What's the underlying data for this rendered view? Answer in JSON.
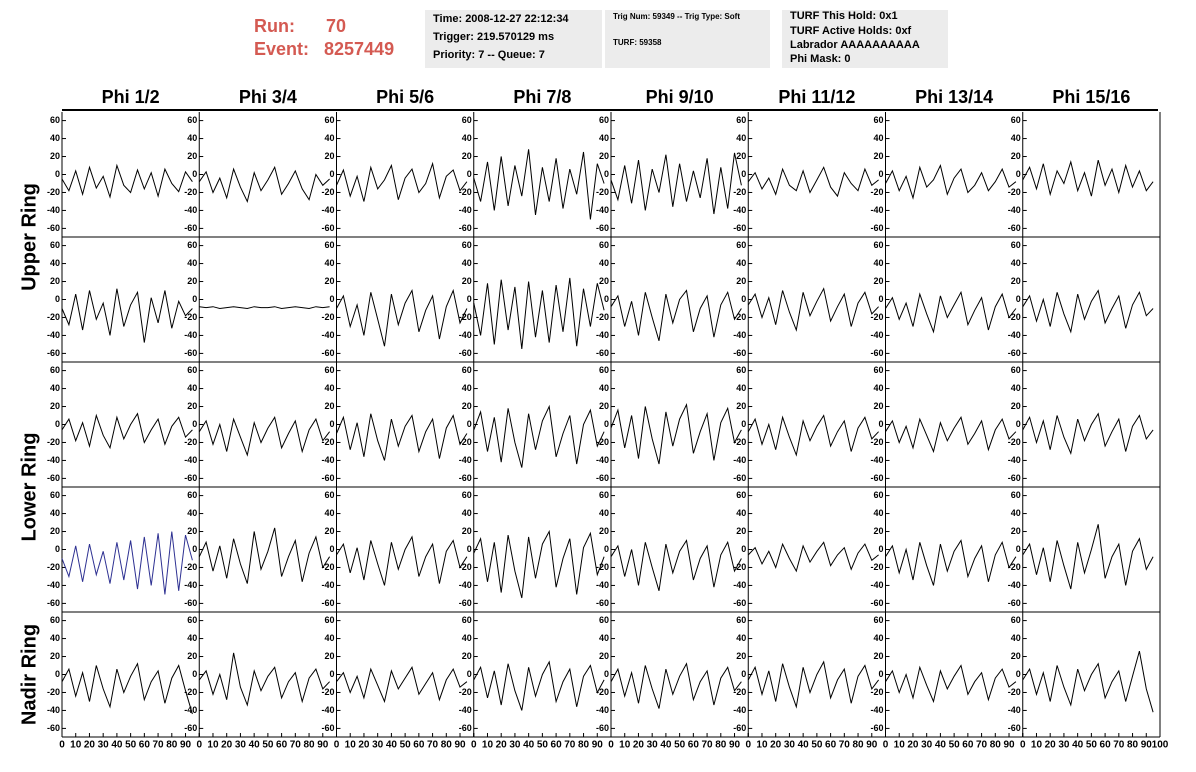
{
  "header": {
    "run_label": "Run:",
    "run": "70",
    "event_label": "Event:",
    "event": "8257449",
    "box1": [
      "Time: 2008-12-27 22:12:34",
      "Trigger: 219.570129 ms",
      "Priority: 7 -- Queue: 7"
    ],
    "box2": [
      "Trig Num: 59349 -- Trig Type: Soft",
      "TURF: 59358"
    ],
    "box3": [
      "TURF This Hold: 0x1",
      "TURF Active Holds: 0xf",
      "Labrador AAAAAAAAAA",
      "Phi Mask: 0"
    ]
  },
  "chart_data": {
    "type": "line",
    "columns": [
      "Phi 1/2",
      "Phi 3/4",
      "Phi 5/6",
      "Phi 7/8",
      "Phi 9/10",
      "Phi 11/12",
      "Phi 13/14",
      "Phi 15/16"
    ],
    "ring_labels": [
      "Upper Ring",
      "Lower Ring",
      "Nadir Ring"
    ],
    "x": [
      0,
      5,
      10,
      15,
      20,
      25,
      30,
      35,
      40,
      45,
      50,
      55,
      60,
      65,
      70,
      75,
      80,
      85,
      90,
      95
    ],
    "xlim": [
      0,
      100
    ],
    "xticks": [
      0,
      10,
      20,
      30,
      40,
      50,
      60,
      70,
      80,
      90,
      100
    ],
    "ylim": [
      -64,
      64
    ],
    "yticks": [
      -60,
      -40,
      -20,
      0,
      20,
      40,
      60
    ],
    "panels": [
      [
        {
          "color": "#000000",
          "values": [
            -5,
            -18,
            4,
            -22,
            8,
            -15,
            -2,
            -25,
            10,
            -12,
            -20,
            5,
            -16,
            2,
            -24,
            6,
            -10,
            -19,
            3,
            -8
          ]
        },
        {
          "color": "#000000",
          "values": [
            -8,
            3,
            -20,
            -4,
            -26,
            6,
            -14,
            -30,
            2,
            -18,
            -6,
            8,
            -22,
            -10,
            4,
            -16,
            -28,
            0,
            -12,
            -5
          ]
        },
        {
          "color": "#000000",
          "values": [
            -12,
            5,
            -24,
            -2,
            -30,
            8,
            -16,
            -6,
            10,
            -28,
            -4,
            6,
            -20,
            -10,
            12,
            -26,
            -2,
            5,
            -18,
            -8
          ]
        },
        {
          "color": "#000000",
          "values": [
            -4,
            -30,
            14,
            -40,
            20,
            -35,
            10,
            -24,
            28,
            -45,
            8,
            -30,
            18,
            -38,
            6,
            -22,
            25,
            -50,
            12,
            -10
          ]
        },
        {
          "color": "#000000",
          "values": [
            -6,
            -28,
            10,
            -32,
            16,
            -40,
            6,
            -20,
            22,
            -36,
            12,
            -30,
            4,
            -26,
            18,
            -44,
            8,
            -38,
            24,
            -12
          ]
        },
        {
          "color": "#000000",
          "values": [
            -8,
            2,
            -16,
            -4,
            -22,
            6,
            -12,
            -18,
            4,
            -20,
            -6,
            8,
            -14,
            -24,
            2,
            -10,
            -18,
            6,
            -12,
            -6
          ]
        },
        {
          "color": "#000000",
          "values": [
            -10,
            4,
            -18,
            -2,
            -26,
            8,
            -14,
            -6,
            10,
            -22,
            -4,
            6,
            -20,
            -12,
            2,
            -18,
            -8,
            6,
            -14,
            -8
          ]
        },
        {
          "color": "#000000",
          "values": [
            -6,
            8,
            -16,
            12,
            -22,
            4,
            -10,
            14,
            -18,
            2,
            -24,
            16,
            -12,
            6,
            -20,
            10,
            -14,
            4,
            -18,
            -8
          ]
        }
      ],
      [
        {
          "color": "#000000",
          "values": [
            -10,
            -28,
            6,
            -34,
            10,
            -22,
            -4,
            -40,
            12,
            -30,
            -6,
            8,
            -48,
            2,
            -26,
            10,
            -32,
            -2,
            -18,
            -10
          ]
        },
        {
          "color": "#000000",
          "values": [
            -8,
            -9,
            -8,
            -10,
            -9,
            -8,
            -9,
            -10,
            -8,
            -9,
            -9,
            -8,
            -10,
            -9,
            -8,
            -9,
            -10,
            -8,
            -9,
            -8
          ]
        },
        {
          "color": "#000000",
          "values": [
            -10,
            4,
            -30,
            -6,
            -40,
            8,
            -22,
            -52,
            6,
            -28,
            -4,
            10,
            -36,
            -12,
            4,
            -44,
            -8,
            10,
            -26,
            -10
          ]
        },
        {
          "color": "#000000",
          "values": [
            -4,
            -40,
            18,
            -50,
            22,
            -34,
            14,
            -55,
            20,
            -42,
            10,
            -48,
            16,
            -36,
            24,
            -52,
            12,
            -30,
            18,
            -12
          ]
        },
        {
          "color": "#000000",
          "values": [
            -8,
            4,
            -30,
            -2,
            -40,
            8,
            -20,
            -46,
            6,
            -26,
            0,
            10,
            -36,
            -10,
            4,
            -42,
            -6,
            8,
            -22,
            -10
          ]
        },
        {
          "color": "#000000",
          "values": [
            -6,
            6,
            -20,
            2,
            -28,
            10,
            -14,
            -34,
            8,
            -18,
            -2,
            12,
            -24,
            -8,
            6,
            -30,
            -4,
            8,
            -16,
            -8
          ]
        },
        {
          "color": "#000000",
          "values": [
            -10,
            2,
            -22,
            -4,
            -30,
            6,
            -16,
            -36,
            4,
            -20,
            -6,
            8,
            -28,
            -12,
            2,
            -34,
            -8,
            6,
            -20,
            -10
          ]
        },
        {
          "color": "#000000",
          "values": [
            -8,
            4,
            -24,
            0,
            -30,
            8,
            -16,
            -36,
            6,
            -22,
            -2,
            10,
            -26,
            -10,
            4,
            -32,
            -6,
            8,
            -18,
            -10
          ]
        }
      ],
      [
        {
          "color": "#000000",
          "values": [
            -6,
            6,
            -18,
            2,
            -24,
            10,
            -12,
            -26,
            8,
            -16,
            0,
            12,
            -20,
            -6,
            6,
            -22,
            -2,
            8,
            -14,
            -6
          ]
        },
        {
          "color": "#000000",
          "values": [
            -8,
            4,
            -22,
            0,
            -30,
            6,
            -14,
            -34,
            2,
            -20,
            -4,
            8,
            -26,
            -10,
            4,
            -30,
            -6,
            6,
            -18,
            -8
          ]
        },
        {
          "color": "#000000",
          "values": [
            -10,
            8,
            -28,
            2,
            -36,
            12,
            -18,
            -40,
            6,
            -24,
            -2,
            10,
            -30,
            -8,
            6,
            -38,
            -4,
            10,
            -22,
            -10
          ]
        },
        {
          "color": "#000000",
          "values": [
            -6,
            14,
            -30,
            8,
            -42,
            18,
            -20,
            -48,
            12,
            -28,
            4,
            20,
            -36,
            -10,
            10,
            -44,
            0,
            16,
            -24,
            -8
          ]
        },
        {
          "color": "#000000",
          "values": [
            -4,
            16,
            -26,
            10,
            -38,
            20,
            -16,
            -44,
            14,
            -24,
            6,
            22,
            -32,
            -8,
            12,
            -40,
            2,
            18,
            -20,
            -6
          ]
        },
        {
          "color": "#000000",
          "values": [
            -8,
            6,
            -22,
            0,
            -28,
            8,
            -14,
            -34,
            4,
            -18,
            -2,
            10,
            -24,
            -8,
            4,
            -30,
            -4,
            8,
            -16,
            -8
          ]
        },
        {
          "color": "#000000",
          "values": [
            -8,
            4,
            -20,
            -2,
            -26,
            6,
            -12,
            -30,
            2,
            -18,
            -4,
            8,
            -22,
            -10,
            4,
            -28,
            -6,
            6,
            -16,
            -8
          ]
        },
        {
          "color": "#000000",
          "values": [
            -6,
            8,
            -20,
            4,
            -28,
            10,
            -14,
            -32,
            6,
            -18,
            0,
            12,
            -24,
            -8,
            6,
            -30,
            -2,
            10,
            -16,
            -6
          ]
        }
      ],
      [
        {
          "color": "#2e3192",
          "values": [
            -10,
            -30,
            4,
            -36,
            6,
            -28,
            -2,
            -38,
            8,
            -34,
            10,
            -44,
            14,
            -40,
            18,
            -50,
            20,
            -46,
            16,
            -12
          ]
        },
        {
          "color": "#000000",
          "values": [
            -8,
            8,
            -24,
            4,
            -32,
            12,
            -16,
            -38,
            20,
            -22,
            -2,
            24,
            -30,
            -8,
            10,
            -36,
            -4,
            14,
            -20,
            -8
          ]
        },
        {
          "color": "#000000",
          "values": [
            -6,
            6,
            -26,
            2,
            -34,
            10,
            -16,
            -40,
            8,
            -22,
            0,
            14,
            -30,
            -8,
            6,
            -38,
            -2,
            10,
            -20,
            -8
          ]
        },
        {
          "color": "#000000",
          "values": [
            -4,
            12,
            -36,
            8,
            -48,
            16,
            -24,
            -54,
            14,
            -32,
            6,
            20,
            -42,
            -10,
            12,
            -50,
            2,
            18,
            -28,
            -8
          ]
        },
        {
          "color": "#000000",
          "values": [
            -8,
            4,
            -30,
            0,
            -40,
            8,
            -20,
            -46,
            6,
            -26,
            -2,
            10,
            -34,
            -10,
            4,
            -42,
            -6,
            8,
            -24,
            -10
          ]
        },
        {
          "color": "#000000",
          "values": [
            -6,
            2,
            -16,
            -2,
            -20,
            6,
            -10,
            -24,
            4,
            -14,
            -2,
            8,
            -18,
            -6,
            2,
            -22,
            -4,
            6,
            -12,
            -6
          ]
        },
        {
          "color": "#000000",
          "values": [
            -8,
            4,
            -26,
            0,
            -34,
            8,
            -18,
            -40,
            6,
            -24,
            -2,
            10,
            -30,
            -10,
            4,
            -36,
            -6,
            8,
            -20,
            -8
          ]
        },
        {
          "color": "#000000",
          "values": [
            -6,
            6,
            -28,
            2,
            -36,
            10,
            -18,
            -44,
            8,
            -26,
            0,
            28,
            -32,
            -8,
            6,
            -40,
            -2,
            12,
            -22,
            -8
          ]
        }
      ],
      [
        {
          "color": "#000000",
          "values": [
            -8,
            6,
            -24,
            2,
            -30,
            10,
            -16,
            -36,
            6,
            -20,
            -2,
            12,
            -28,
            -8,
            4,
            -32,
            -4,
            10,
            -18,
            -44
          ]
        },
        {
          "color": "#000000",
          "values": [
            -6,
            4,
            -22,
            0,
            -28,
            24,
            -14,
            -34,
            4,
            -18,
            -2,
            8,
            -26,
            -8,
            2,
            -30,
            -4,
            6,
            -16,
            -8
          ]
        },
        {
          "color": "#000000",
          "values": [
            -8,
            2,
            -20,
            -2,
            -26,
            6,
            -12,
            -30,
            4,
            -16,
            -4,
            8,
            -22,
            -10,
            2,
            -28,
            -6,
            6,
            -14,
            -8
          ]
        },
        {
          "color": "#000000",
          "values": [
            -6,
            8,
            -26,
            4,
            -34,
            12,
            -18,
            -40,
            8,
            -24,
            0,
            14,
            -30,
            -8,
            6,
            -36,
            -2,
            10,
            -20,
            -6
          ]
        },
        {
          "color": "#000000",
          "values": [
            -8,
            6,
            -24,
            2,
            -32,
            10,
            -16,
            -38,
            6,
            -22,
            -2,
            12,
            -28,
            -8,
            4,
            -34,
            -4,
            8,
            -18,
            -8
          ]
        },
        {
          "color": "#000000",
          "values": [
            -6,
            8,
            -22,
            4,
            -30,
            12,
            -14,
            -36,
            8,
            -20,
            0,
            14,
            -26,
            -6,
            6,
            -32,
            -2,
            10,
            -16,
            -6
          ]
        },
        {
          "color": "#000000",
          "values": [
            -8,
            4,
            -20,
            0,
            -26,
            8,
            -12,
            -30,
            4,
            -16,
            -2,
            10,
            -22,
            -8,
            2,
            -28,
            -4,
            6,
            -14,
            -8
          ]
        },
        {
          "color": "#000000",
          "values": [
            -6,
            6,
            -22,
            2,
            -30,
            10,
            -14,
            -34,
            6,
            -18,
            0,
            12,
            -26,
            -8,
            4,
            -30,
            -2,
            26,
            -16,
            -42
          ]
        }
      ]
    ]
  }
}
